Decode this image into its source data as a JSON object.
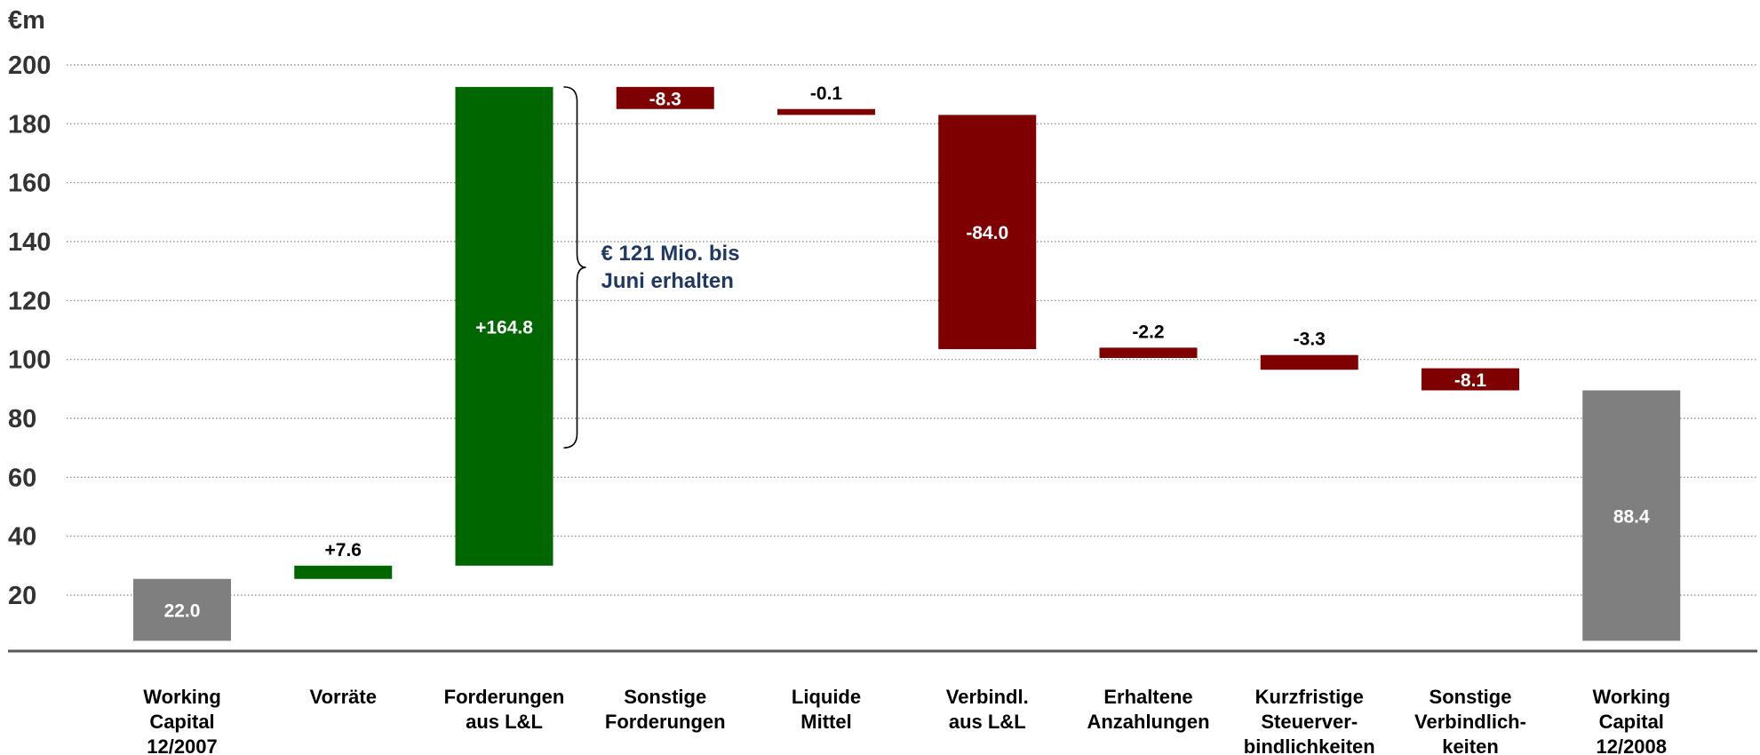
{
  "chart_data": {
    "type": "bar",
    "subtype": "waterfall",
    "unit_label": "€m",
    "categories": [
      [
        "Working",
        "Capital",
        "12/2007"
      ],
      [
        "Vorräte"
      ],
      [
        "Forderungen",
        "aus L&L"
      ],
      [
        "Sonstige",
        "Forderungen"
      ],
      [
        "Liquide",
        "Mittel"
      ],
      [
        "Verbindl.",
        "aus L&L"
      ],
      [
        "Erhaltene",
        "Anzahlungen"
      ],
      [
        "Kurzfristige",
        "Steuerver-",
        "bindlichkeiten"
      ],
      [
        "Sonstige",
        "Verbindlich-",
        "keiten"
      ],
      [
        "Working",
        "Capital",
        "12/2008"
      ]
    ],
    "bars": [
      {
        "start": 4.5,
        "end": 25.5,
        "label": "22.0",
        "kind": "total",
        "label_pos": "inside"
      },
      {
        "start": 25.5,
        "end": 30.0,
        "label": "+7.6",
        "kind": "increase",
        "label_pos": "above"
      },
      {
        "start": 30.0,
        "end": 192.5,
        "label": "+164.8",
        "kind": "increase",
        "label_pos": "inside"
      },
      {
        "start": 192.5,
        "end": 185.0,
        "label": "-8.3",
        "kind": "decrease",
        "label_pos": "inside"
      },
      {
        "start": 185.0,
        "end": 183.0,
        "label": "-0.1",
        "kind": "decrease",
        "label_pos": "above"
      },
      {
        "start": 183.0,
        "end": 103.5,
        "label": "-84.0",
        "kind": "decrease",
        "label_pos": "inside"
      },
      {
        "start": 104.0,
        "end": 100.5,
        "label": "-2.2",
        "kind": "decrease",
        "label_pos": "above"
      },
      {
        "start": 101.5,
        "end": 96.5,
        "label": "-3.3",
        "kind": "decrease",
        "label_pos": "above"
      },
      {
        "start": 97.0,
        "end": 89.5,
        "label": "-8.1",
        "kind": "decrease",
        "label_pos": "inside"
      },
      {
        "start": 4.5,
        "end": 89.5,
        "label": "88.4",
        "kind": "total",
        "label_pos": "inside"
      }
    ],
    "y_ticks": [
      20,
      40,
      60,
      80,
      100,
      120,
      140,
      160,
      180,
      200
    ],
    "ylim": [
      0,
      200
    ],
    "grid": true,
    "annotation": {
      "lines": [
        "€ 121 Mio. bis",
        "Juni erhalten"
      ],
      "bracket_from": 192.5,
      "bracket_to": 70,
      "attached_bar": 2
    },
    "colors": {
      "total": "#7f7f7f",
      "increase": "#006600",
      "decrease": "#7f0000",
      "grid": "#808080",
      "axis": "#595959",
      "annotation": "#1f3864"
    }
  }
}
